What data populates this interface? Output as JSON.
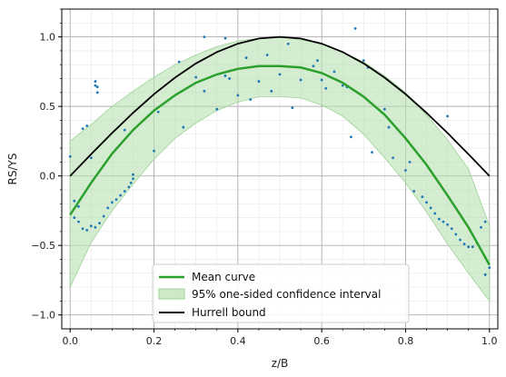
{
  "chart_data": {
    "type": "line",
    "xlabel": "z/B",
    "ylabel": "RS/YS",
    "xlim": [
      -0.02,
      1.02
    ],
    "ylim": [
      -1.1,
      1.2
    ],
    "x_ticks": [
      0.0,
      0.2,
      0.4,
      0.6,
      0.8,
      1.0
    ],
    "y_ticks": [
      -1.0,
      -0.5,
      0.0,
      0.5,
      1.0
    ],
    "x_tick_labels": [
      "0.0",
      "0.2",
      "0.4",
      "0.6",
      "0.8",
      "1.0"
    ],
    "y_tick_labels": [
      "−1.0",
      "−0.5",
      "0.0",
      "0.5",
      "1.0"
    ],
    "grid": {
      "major": true,
      "minor": true
    },
    "legend_position": "bottom-center",
    "colors": {
      "mean": "#2ca02c",
      "band_fill": "#b8e0b0",
      "band_edge": "#9fd39a",
      "hurrell": "#000000",
      "points": "#1f77b4",
      "grid_major": "#b0b0b0",
      "grid_minor": "#e6e6e6"
    },
    "series": [
      {
        "name": "Mean curve",
        "x": [
          0.0,
          0.05,
          0.1,
          0.15,
          0.2,
          0.25,
          0.3,
          0.35,
          0.4,
          0.45,
          0.5,
          0.55,
          0.6,
          0.65,
          0.7,
          0.75,
          0.8,
          0.85,
          0.9,
          0.95,
          1.0
        ],
        "y": [
          -0.28,
          -0.05,
          0.16,
          0.33,
          0.47,
          0.58,
          0.67,
          0.73,
          0.77,
          0.79,
          0.79,
          0.78,
          0.74,
          0.67,
          0.57,
          0.44,
          0.27,
          0.08,
          -0.14,
          -0.37,
          -0.64
        ]
      },
      {
        "name": "95% one-sided confidence interval",
        "x": [
          0.0,
          0.05,
          0.1,
          0.15,
          0.2,
          0.25,
          0.3,
          0.35,
          0.4,
          0.45,
          0.5,
          0.55,
          0.6,
          0.65,
          0.7,
          0.75,
          0.8,
          0.85,
          0.9,
          0.95,
          1.0
        ],
        "upper": [
          0.25,
          0.37,
          0.5,
          0.61,
          0.71,
          0.8,
          0.87,
          0.93,
          0.97,
          0.99,
          1.0,
          0.98,
          0.95,
          0.89,
          0.82,
          0.72,
          0.6,
          0.44,
          0.26,
          0.05,
          -0.36
        ],
        "lower": [
          -0.8,
          -0.48,
          -0.25,
          -0.06,
          0.12,
          0.27,
          0.38,
          0.47,
          0.53,
          0.57,
          0.57,
          0.56,
          0.51,
          0.43,
          0.3,
          0.13,
          -0.05,
          -0.26,
          -0.49,
          -0.7,
          -0.9
        ]
      },
      {
        "name": "Hurrell bound",
        "x": [
          0.0,
          0.05,
          0.1,
          0.15,
          0.2,
          0.25,
          0.3,
          0.35,
          0.4,
          0.45,
          0.5,
          0.55,
          0.6,
          0.65,
          0.7,
          0.75,
          0.8,
          0.85,
          0.9,
          0.95,
          1.0
        ],
        "y": [
          0.0,
          0.156,
          0.309,
          0.454,
          0.588,
          0.707,
          0.809,
          0.891,
          0.951,
          0.988,
          1.0,
          0.988,
          0.951,
          0.891,
          0.809,
          0.707,
          0.588,
          0.454,
          0.309,
          0.156,
          0.0
        ]
      },
      {
        "type": "scatter",
        "x": [
          0.0,
          0.01,
          0.01,
          0.02,
          0.02,
          0.03,
          0.03,
          0.04,
          0.04,
          0.05,
          0.05,
          0.06,
          0.06,
          0.065,
          0.07,
          0.08,
          0.09,
          0.1,
          0.11,
          0.12,
          0.13,
          0.14,
          0.145,
          0.15,
          0.15,
          0.2,
          0.21,
          0.26,
          0.27,
          0.3,
          0.32,
          0.35,
          0.37,
          0.38,
          0.4,
          0.42,
          0.45,
          0.47,
          0.48,
          0.5,
          0.52,
          0.55,
          0.58,
          0.6,
          0.61,
          0.63,
          0.65,
          0.67,
          0.68,
          0.7,
          0.72,
          0.75,
          0.77,
          0.8,
          0.82,
          0.84,
          0.85,
          0.86,
          0.87,
          0.88,
          0.89,
          0.9,
          0.9,
          0.91,
          0.92,
          0.93,
          0.94,
          0.95,
          0.96,
          0.97,
          0.98,
          0.99,
          0.99,
          1.0,
          0.06,
          0.065,
          0.13,
          0.32,
          0.37,
          0.43,
          0.53,
          0.59,
          0.66,
          0.71,
          0.76,
          0.81
        ],
        "y": [
          0.14,
          -0.18,
          -0.3,
          -0.33,
          -0.22,
          -0.38,
          0.34,
          -0.39,
          0.36,
          -0.36,
          0.13,
          -0.37,
          0.68,
          0.64,
          -0.34,
          -0.29,
          -0.23,
          -0.19,
          -0.17,
          -0.14,
          -0.11,
          -0.08,
          -0.05,
          -0.02,
          0.01,
          0.18,
          0.46,
          0.82,
          0.35,
          0.71,
          1.0,
          0.48,
          0.99,
          0.7,
          0.58,
          0.85,
          0.68,
          0.87,
          0.61,
          0.73,
          0.95,
          0.69,
          0.79,
          0.69,
          0.63,
          0.75,
          0.65,
          0.28,
          1.06,
          0.83,
          0.17,
          0.48,
          0.13,
          0.04,
          -0.11,
          -0.15,
          -0.19,
          -0.23,
          -0.27,
          -0.31,
          -0.33,
          0.43,
          -0.35,
          -0.38,
          -0.42,
          -0.46,
          -0.49,
          -0.51,
          -0.51,
          -0.48,
          -0.37,
          -0.33,
          -0.71,
          -0.66,
          0.65,
          0.6,
          0.33,
          0.61,
          0.72,
          0.55,
          0.49,
          0.83,
          0.64,
          0.78,
          0.35,
          0.1
        ]
      }
    ]
  }
}
